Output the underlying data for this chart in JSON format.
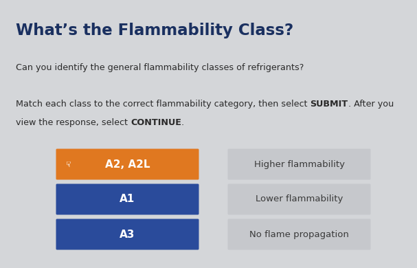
{
  "title": "What’s the Flammability Class?",
  "subtitle": "Can you identify the general flammability classes of refrigerants?",
  "background_color": "#d4d6d9",
  "title_color": "#1a3060",
  "text_color": "#2a2a2a",
  "left_boxes": [
    {
      "label": "A2, A2L",
      "color": "#e07820",
      "bold": true
    },
    {
      "label": "A1",
      "color": "#2a4b9b",
      "bold": true
    },
    {
      "label": "A3",
      "color": "#2a4b9b",
      "bold": true
    }
  ],
  "right_boxes": [
    {
      "label": "Higher flammability",
      "color": "#c6c8cc"
    },
    {
      "label": "Lower flammability",
      "color": "#c6c8cc"
    },
    {
      "label": "No flame propagation",
      "color": "#c6c8cc"
    }
  ],
  "box_text_color_left": "#ffffff",
  "box_text_color_right": "#3a3a3a",
  "fig_width": 6.07,
  "fig_height": 3.9,
  "dpi": 100
}
